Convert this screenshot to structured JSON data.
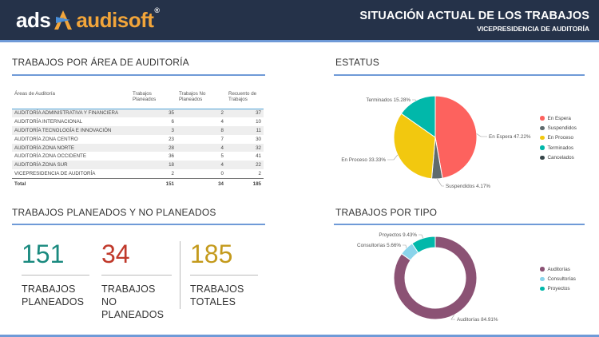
{
  "header": {
    "logo_ads": "ads",
    "logo_audisoft": "audisoft",
    "logo_reg": "®",
    "title": "SITUACIÓN ACTUAL DE LOS TRABAJOS",
    "subtitle": "VICEPRESIDENCIA DE AUDITORÍA"
  },
  "colors": {
    "header_bg": "#253249",
    "accent_line": "#6f9ad7",
    "table_header_line": "#4fa3d6"
  },
  "sections": {
    "area": "TRABAJOS POR ÁREA DE AUDITORÍA",
    "estatus": "ESTATUS",
    "planeados": "TRABAJOS PLANEADOS Y NO PLANEADOS",
    "tipo": "TRABAJOS POR TIPO"
  },
  "table": {
    "headers": [
      "Áreas de Auditoría",
      "Trabajos Planeados",
      "Trabajos No Planeados",
      "Recuento de Trabajos"
    ],
    "rows": [
      [
        "AUDITORÍA ADMINISTRATIVA Y FINANCIERA",
        "35",
        "2",
        "37"
      ],
      [
        "AUDITORÍA INTERNACIONAL",
        "6",
        "4",
        "10"
      ],
      [
        "AUDITORÍA TECNOLOGÍA E INNOVACIÓN",
        "3",
        "8",
        "11"
      ],
      [
        "AUDITORÍA ZONA CENTRO",
        "23",
        "7",
        "30"
      ],
      [
        "AUDITORÍA ZONA NORTE",
        "28",
        "4",
        "32"
      ],
      [
        "AUDITORÍA ZONA OCCIDENTE",
        "36",
        "5",
        "41"
      ],
      [
        "AUDITORÍA ZONA SUR",
        "18",
        "4",
        "22"
      ],
      [
        "VICEPRESIDENCIA DE AUDITORÍA",
        "2",
        "0",
        "2"
      ]
    ],
    "total": [
      "Total",
      "151",
      "34",
      "185"
    ]
  },
  "kpis": [
    {
      "value": "151",
      "label": "TRABAJOS\nPLANEADOS",
      "color": "#1a8a7f"
    },
    {
      "value": "34",
      "label": "TRABAJOS\nNO PLANEADOS",
      "color": "#c0392b"
    },
    {
      "value": "185",
      "label": "TRABAJOS\nTOTALES",
      "color": "#c49a1c"
    }
  ],
  "chart_data": [
    {
      "type": "pie",
      "title": "ESTATUS",
      "categories": [
        "En Espera",
        "Suspendidos",
        "En Proceso",
        "Terminados",
        "Cancelados"
      ],
      "values": [
        47.22,
        4.17,
        33.33,
        15.28,
        0
      ],
      "colors": [
        "#fd625e",
        "#5f6b6d",
        "#f2c80f",
        "#01b8aa",
        "#374649"
      ],
      "data_labels": [
        {
          "category": "En Espera",
          "text": "En Espera 47.22%"
        },
        {
          "category": "Suspendidos",
          "text": "Suspendidos 4.17%"
        },
        {
          "category": "En Proceso",
          "text": "En Proceso 33.33%"
        },
        {
          "category": "Terminados",
          "text": "Terminados 15.28%"
        }
      ],
      "legend": "right"
    },
    {
      "type": "pie",
      "subtype": "donut",
      "title": "TRABAJOS POR TIPO",
      "categories": [
        "Auditorías",
        "Consultorías",
        "Proyectos"
      ],
      "values": [
        84.91,
        5.66,
        9.43
      ],
      "colors": [
        "#8b5274",
        "#8ad4eb",
        "#01b8aa"
      ],
      "data_labels": [
        {
          "category": "Auditorías",
          "text": "Auditorías 84.91%"
        },
        {
          "category": "Consultorías",
          "text": "Consultorías 5.66%"
        },
        {
          "category": "Proyectos",
          "text": "Proyectos 9.43%"
        }
      ],
      "legend": "right"
    }
  ]
}
